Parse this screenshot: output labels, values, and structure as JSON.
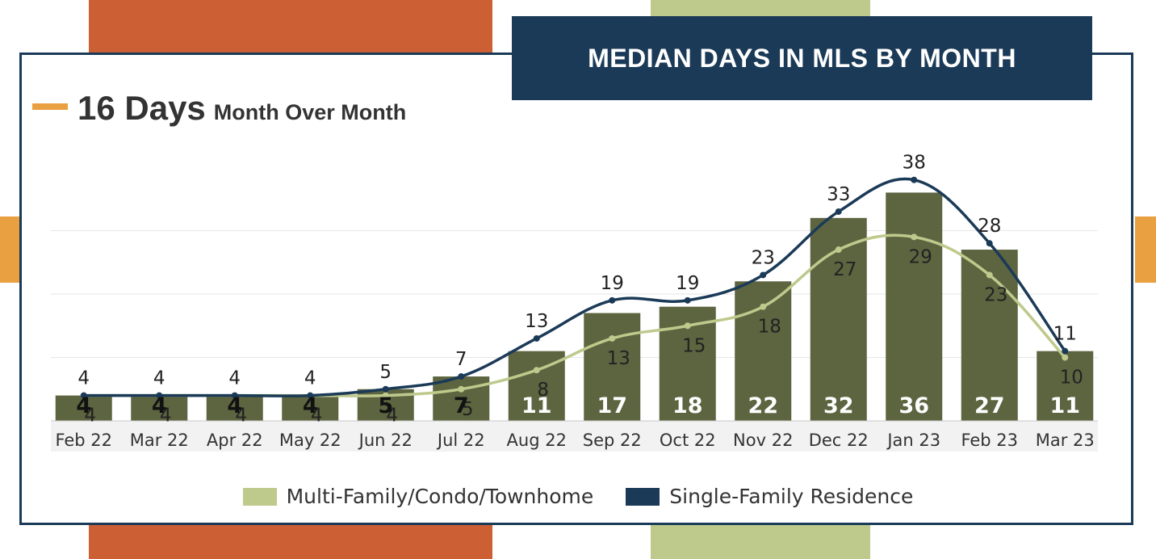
{
  "header": {
    "title": "MEDIAN DAYS IN MLS BY MONTH"
  },
  "kpi": {
    "value": "16 Days",
    "label": "Month Over Month"
  },
  "colors": {
    "navy": "#1b3a57",
    "bar": "#5d6440",
    "light_line": "#bec98c",
    "orange_dash": "#e8a040",
    "deco_rust": "#cd5f35",
    "deco_green": "#bec98c",
    "deco_orange": "#e8a040"
  },
  "chart_data": {
    "type": "bar",
    "title": "MEDIAN DAYS IN MLS BY MONTH",
    "categories": [
      "Feb 22",
      "Mar 22",
      "Apr 22",
      "May 22",
      "Jun 22",
      "Jul 22",
      "Aug 22",
      "Sep 22",
      "Oct 22",
      "Nov 22",
      "Dec 22",
      "Jan 23",
      "Feb 23",
      "Mar 23"
    ],
    "bars": {
      "values": [
        4,
        4,
        4,
        4,
        5,
        7,
        11,
        17,
        18,
        22,
        32,
        36,
        27,
        11
      ]
    },
    "series": [
      {
        "name": "Multi-Family/Condo/Townhome",
        "values": [
          4,
          4,
          4,
          4,
          4,
          5,
          8,
          13,
          15,
          18,
          27,
          29,
          23,
          10
        ]
      },
      {
        "name": "Single-Family Residence",
        "values": [
          4,
          4,
          4,
          4,
          5,
          7,
          13,
          19,
          19,
          23,
          33,
          38,
          28,
          11
        ]
      }
    ],
    "ylim": [
      0,
      40
    ],
    "grid": true,
    "legend": "bottom"
  }
}
